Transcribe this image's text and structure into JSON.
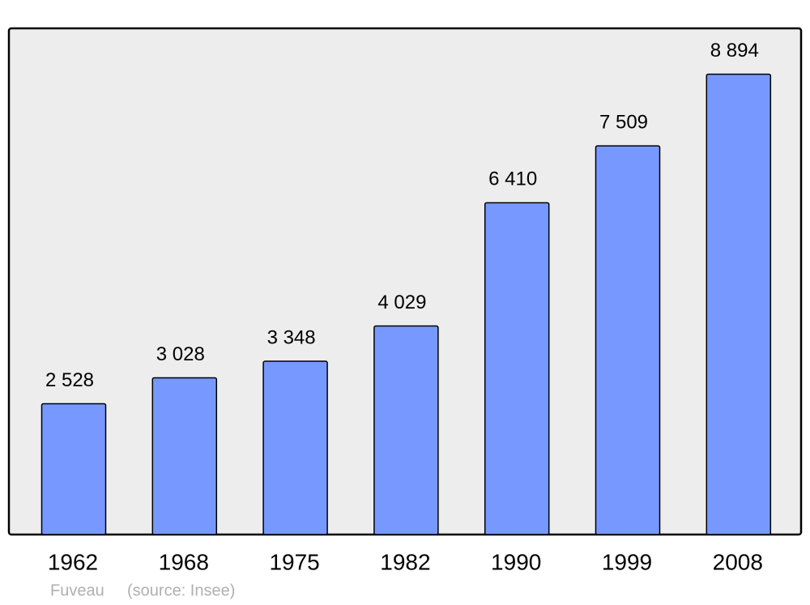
{
  "chart_data": {
    "type": "bar",
    "categories": [
      "1962",
      "1968",
      "1975",
      "1982",
      "1990",
      "1999",
      "2008"
    ],
    "values": [
      2528,
      3028,
      3348,
      4029,
      6410,
      7509,
      8894
    ],
    "value_labels": [
      "2 528",
      "3 028",
      "3 348",
      "4 029",
      "6 410",
      "7 509",
      "8 894"
    ],
    "color": "#7799ff",
    "ylim": [
      0,
      9780
    ],
    "caption": "Fuveau",
    "source": "(source: Insee)"
  }
}
